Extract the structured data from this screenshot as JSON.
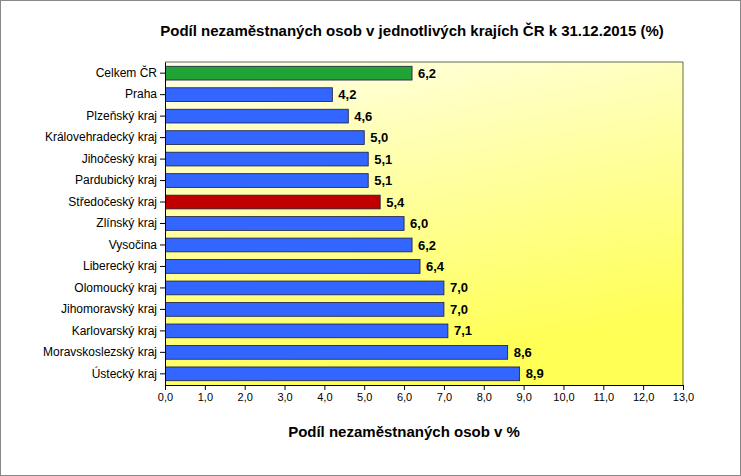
{
  "chart_data": {
    "type": "bar",
    "orientation": "horizontal",
    "title": "Podíl nezaměstnaných osob v jednotlivých krajích ČR k 31.12.2015 (%)",
    "x_label": "Podíl nezaměstnaných osob v %",
    "categories": [
      "Celkem ČR",
      "Praha",
      "Plzeňský kraj",
      "Královehradecký kraj",
      "Jihočeský kraj",
      "Pardubický kraj",
      "Středočeský kraj",
      "Zlínský kraj",
      "Vysočina",
      "Liberecký kraj",
      "Olomoucký kraj",
      "Jihomoravský kraj",
      "Karlovarský kraj",
      "Moravskoslezský kraj",
      "Ústecký kraj"
    ],
    "values": [
      6.2,
      4.2,
      4.6,
      5.0,
      5.1,
      5.1,
      5.4,
      6.0,
      6.2,
      6.4,
      7.0,
      7.0,
      7.1,
      8.6,
      8.9
    ],
    "value_labels": [
      "6,2",
      "4,2",
      "4,6",
      "5,0",
      "5,1",
      "5,1",
      "5,4",
      "6,0",
      "6,2",
      "6,4",
      "7,0",
      "7,0",
      "7,1",
      "8,6",
      "8,9"
    ],
    "colors": [
      "#21a336",
      "#3366ff",
      "#3366ff",
      "#3366ff",
      "#3366ff",
      "#3366ff",
      "#c00000",
      "#3366ff",
      "#3366ff",
      "#3366ff",
      "#3366ff",
      "#3366ff",
      "#3366ff",
      "#3366ff",
      "#3366ff"
    ],
    "xlim": [
      0,
      13
    ],
    "xticks": [
      {
        "value": 0,
        "label": "0,0"
      },
      {
        "value": 1,
        "label": "1,0"
      },
      {
        "value": 2,
        "label": "2,0"
      },
      {
        "value": 3,
        "label": "3,0"
      },
      {
        "value": 4,
        "label": "4,0"
      },
      {
        "value": 5,
        "label": "5,0"
      },
      {
        "value": 6,
        "label": "6,0"
      },
      {
        "value": 7,
        "label": "7,0"
      },
      {
        "value": 8,
        "label": "8,0"
      },
      {
        "value": 9,
        "label": "9,0"
      },
      {
        "value": 10,
        "label": "10,0"
      },
      {
        "value": 11,
        "label": "11,0"
      },
      {
        "value": 12,
        "label": "12,0"
      },
      {
        "value": 13,
        "label": "13,0"
      }
    ],
    "grid": false,
    "data_labels": true
  }
}
